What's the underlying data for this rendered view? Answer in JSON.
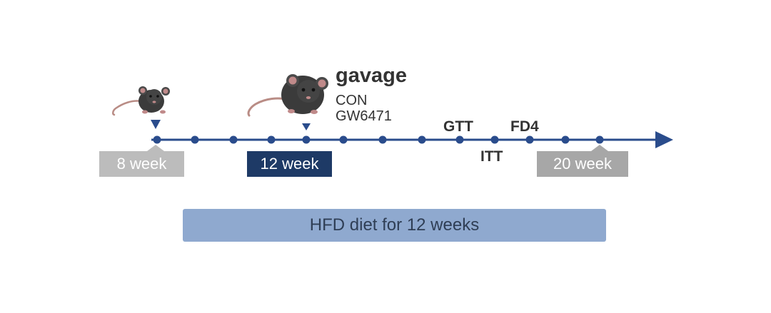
{
  "timeline": {
    "start_label": "8 week",
    "mid_label": "12 week",
    "end_label": "20 week",
    "events": {
      "gtt": "GTT",
      "itt": "ITT",
      "fd4": "FD4"
    }
  },
  "gavage": {
    "title": "gavage",
    "groups": [
      "CON",
      "GW6471"
    ]
  },
  "diet_bar": {
    "label": "HFD diet for 12 weeks"
  },
  "colors": {
    "axis": "#2a4c8c",
    "mid_label_bg": "#1e3a66",
    "start_label_bg": "#bcbcbc",
    "end_label_bg": "#a7a7a7",
    "diet_bar_bg": "#8fa9cf",
    "mouse_body": "#3b3b3b",
    "mouse_ear": "#c08a8a",
    "mouse_tail": "#b98c85"
  },
  "icons": [
    "mouse-icon",
    "arrow-marker-icon"
  ]
}
